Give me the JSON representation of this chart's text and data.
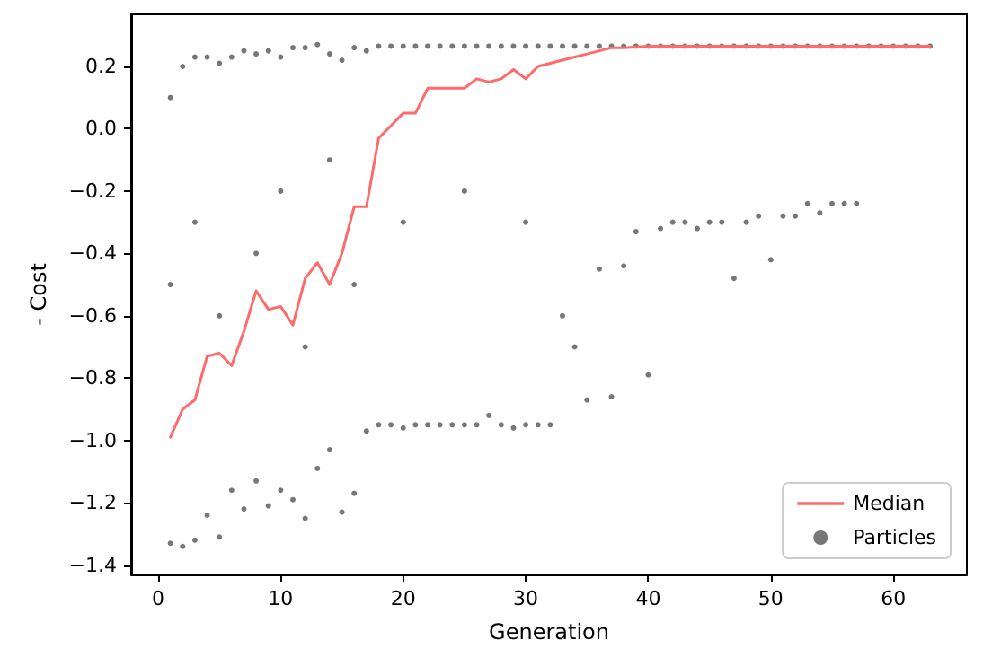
{
  "chart_data": {
    "type": "scatter",
    "xlabel": "Generation",
    "ylabel": "- Cost",
    "xlim": [
      -2.2,
      66
    ],
    "xticks": [
      0,
      10,
      20,
      30,
      40,
      50,
      60
    ],
    "ylim": [
      -1.43,
      0.367
    ],
    "yticks": [
      {
        "value": 0.2,
        "label": "0.2"
      },
      {
        "value": 0,
        "label": "0.0"
      },
      {
        "value": -0.2,
        "label": "−0.2"
      },
      {
        "value": -0.4,
        "label": "−0.4"
      },
      {
        "value": -0.6,
        "label": "−0.6"
      },
      {
        "value": -0.8,
        "label": "−0.8"
      },
      {
        "value": -1,
        "label": "−1.0"
      },
      {
        "value": -1.2,
        "label": "−1.2"
      },
      {
        "value": -1.4,
        "label": "−1.4"
      }
    ],
    "grid": false,
    "legend": "bottom right",
    "series": [
      {
        "name": "Median",
        "type": "line",
        "color": "#ff6b6b",
        "marker": "none",
        "line_style": "solid",
        "x": [
          1,
          2,
          3,
          4,
          5,
          6,
          7,
          8,
          9,
          10,
          11,
          12,
          13,
          14,
          15,
          16,
          17,
          18,
          19,
          20,
          21,
          22,
          23,
          24,
          25,
          26,
          27,
          28,
          29,
          30,
          31,
          32,
          33,
          34,
          35,
          36,
          37,
          38,
          40,
          45,
          50,
          55,
          60,
          63
        ],
        "values": [
          -0.99,
          -0.9,
          -0.87,
          -0.73,
          -0.72,
          -0.76,
          -0.65,
          -0.52,
          -0.58,
          -0.57,
          -0.63,
          -0.48,
          -0.43,
          -0.5,
          -0.4,
          -0.25,
          -0.25,
          -0.03,
          0.01,
          0.05,
          0.05,
          0.13,
          0.13,
          0.13,
          0.13,
          0.16,
          0.15,
          0.16,
          0.19,
          0.16,
          0.2,
          0.21,
          0.22,
          0.23,
          0.24,
          0.25,
          0.26,
          0.26,
          0.265,
          0.265,
          0.265,
          0.265,
          0.265,
          0.265
        ]
      },
      {
        "name": "Particles",
        "color": "#555555",
        "marker": "circle",
        "x": [
          1,
          2,
          3,
          4,
          5,
          6,
          7,
          8,
          9,
          10,
          11,
          12,
          13,
          14,
          15,
          16,
          17,
          18,
          19,
          20,
          21,
          22,
          23,
          24,
          25,
          26,
          27,
          28,
          29,
          30,
          31,
          32,
          33,
          34,
          35,
          36,
          37,
          38,
          39,
          40,
          41,
          42,
          43,
          44,
          45,
          46,
          47,
          48,
          49,
          50,
          51,
          52,
          53,
          54,
          55,
          56,
          57,
          58,
          59,
          60,
          61,
          62,
          63,
          1,
          2,
          3,
          4,
          5,
          6,
          7,
          8,
          9,
          10,
          11,
          12,
          13,
          14,
          15,
          16,
          17,
          18,
          19,
          20,
          21,
          22,
          23,
          24,
          25,
          26,
          27,
          28,
          29,
          30,
          31,
          32,
          33,
          34,
          35,
          36,
          37,
          38,
          39,
          40,
          41,
          42,
          43,
          44,
          45,
          46,
          47,
          48,
          49,
          50,
          51,
          52,
          53,
          54,
          55,
          56,
          57,
          1,
          3,
          5,
          8,
          10,
          12,
          14,
          16,
          20,
          25,
          30
        ],
        "values": [
          0.1,
          0.2,
          0.23,
          0.23,
          0.21,
          0.23,
          0.25,
          0.24,
          0.25,
          0.23,
          0.26,
          0.26,
          0.27,
          0.24,
          0.22,
          0.26,
          0.25,
          0.265,
          0.265,
          0.265,
          0.265,
          0.265,
          0.265,
          0.265,
          0.265,
          0.265,
          0.265,
          0.265,
          0.265,
          0.265,
          0.265,
          0.265,
          0.265,
          0.265,
          0.265,
          0.265,
          0.265,
          0.265,
          0.265,
          0.265,
          0.265,
          0.265,
          0.265,
          0.265,
          0.265,
          0.265,
          0.265,
          0.265,
          0.265,
          0.265,
          0.265,
          0.265,
          0.265,
          0.265,
          0.265,
          0.265,
          0.265,
          0.265,
          0.265,
          0.265,
          0.265,
          0.265,
          0.265,
          -1.33,
          -1.34,
          -1.32,
          -1.24,
          -1.31,
          -1.16,
          -1.22,
          -1.13,
          -1.21,
          -1.16,
          -1.19,
          -1.25,
          -1.09,
          -1.03,
          -1.23,
          -1.17,
          -0.97,
          -0.95,
          -0.95,
          -0.96,
          -0.95,
          -0.95,
          -0.95,
          -0.95,
          -0.95,
          -0.95,
          -0.92,
          -0.95,
          -0.96,
          -0.95,
          -0.95,
          -0.95,
          -0.6,
          -0.7,
          -0.87,
          -0.45,
          -0.86,
          -0.44,
          -0.33,
          -0.79,
          -0.32,
          -0.3,
          -0.3,
          -0.32,
          -0.3,
          -0.3,
          -0.48,
          -0.3,
          -0.28,
          -0.42,
          -0.28,
          -0.28,
          -0.24,
          -0.27,
          -0.24,
          -0.24,
          -0.24,
          -0.5,
          -0.3,
          -0.6,
          -0.4,
          -0.2,
          -0.7,
          -0.1,
          -0.5,
          -0.3,
          -0.2,
          -0.3
        ]
      }
    ]
  }
}
